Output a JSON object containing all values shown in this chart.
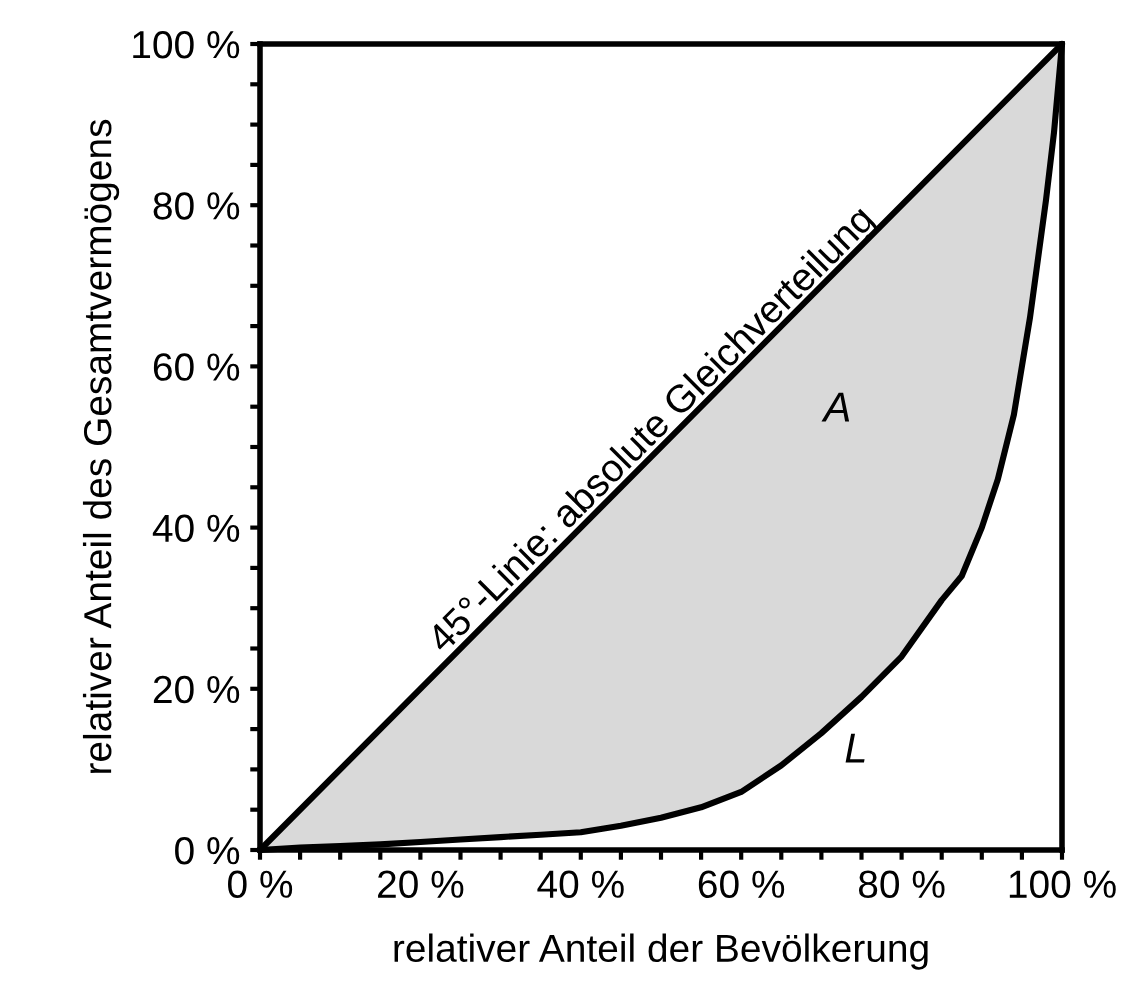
{
  "chart_data": {
    "type": "line",
    "xlabel": "relativer Anteil der Bevölkerung",
    "ylabel": "relativer Anteil des Gesamtvermögens",
    "xlim": [
      0,
      100
    ],
    "ylim": [
      0,
      100
    ],
    "xticks": [
      {
        "value": 0,
        "label": "0 %"
      },
      {
        "value": 5,
        "label": null
      },
      {
        "value": 10,
        "label": null
      },
      {
        "value": 15,
        "label": null
      },
      {
        "value": 20,
        "label": "20 %"
      },
      {
        "value": 25,
        "label": null
      },
      {
        "value": 30,
        "label": null
      },
      {
        "value": 35,
        "label": null
      },
      {
        "value": 40,
        "label": "40 %"
      },
      {
        "value": 45,
        "label": null
      },
      {
        "value": 50,
        "label": null
      },
      {
        "value": 55,
        "label": null
      },
      {
        "value": 60,
        "label": "60 %"
      },
      {
        "value": 65,
        "label": null
      },
      {
        "value": 70,
        "label": null
      },
      {
        "value": 75,
        "label": null
      },
      {
        "value": 80,
        "label": "80 %"
      },
      {
        "value": 85,
        "label": null
      },
      {
        "value": 90,
        "label": null
      },
      {
        "value": 95,
        "label": null
      },
      {
        "value": 100,
        "label": "100 %"
      }
    ],
    "yticks": [
      {
        "value": 0,
        "label": "0 %"
      },
      {
        "value": 5,
        "label": null
      },
      {
        "value": 10,
        "label": null
      },
      {
        "value": 15,
        "label": null
      },
      {
        "value": 20,
        "label": "20 %"
      },
      {
        "value": 25,
        "label": null
      },
      {
        "value": 30,
        "label": null
      },
      {
        "value": 35,
        "label": null
      },
      {
        "value": 40,
        "label": "40 %"
      },
      {
        "value": 45,
        "label": null
      },
      {
        "value": 50,
        "label": null
      },
      {
        "value": 55,
        "label": null
      },
      {
        "value": 60,
        "label": "60 %"
      },
      {
        "value": 65,
        "label": null
      },
      {
        "value": 70,
        "label": null
      },
      {
        "value": 75,
        "label": null
      },
      {
        "value": 80,
        "label": "80 %"
      },
      {
        "value": 85,
        "label": null
      },
      {
        "value": 90,
        "label": null
      },
      {
        "value": 95,
        "label": null
      },
      {
        "value": 100,
        "label": "100 %"
      }
    ],
    "series": [
      {
        "color": "#000000",
        "x": [
          0,
          100
        ],
        "values": [
          0,
          100
        ]
      },
      {
        "color": "#000000",
        "x": [
          0,
          5,
          10,
          15,
          20,
          25,
          30,
          35,
          40,
          45,
          50,
          55,
          60,
          65,
          70,
          75,
          80,
          85,
          87.5,
          90,
          92,
          94,
          96,
          98,
          99,
          100
        ],
        "values": [
          0,
          0.3,
          0.5,
          0.7,
          1,
          1.3,
          1.6,
          1.9,
          2.2,
          3,
          4,
          5.3,
          7.2,
          10.5,
          14.5,
          19,
          24,
          31,
          34,
          40,
          46,
          54,
          66,
          80.6,
          89,
          100
        ]
      }
    ],
    "annotations": [
      "45°-Linie: absolute Gleichverteilung",
      "A",
      "L"
    ]
  }
}
